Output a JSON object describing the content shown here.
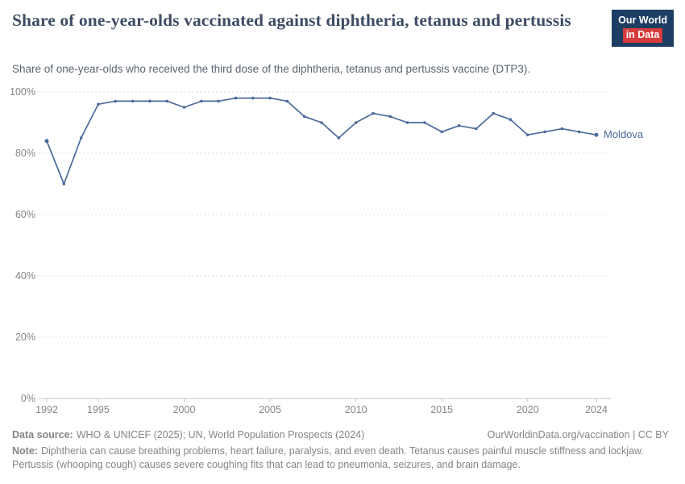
{
  "header": {
    "title": "Share of one-year-olds vaccinated against diphtheria, tetanus and pertussis",
    "subtitle": "Share of one-year-olds who received the third dose of the diphtheria, tetanus and pertussis vaccine (DTP3).",
    "logo": {
      "line1": "Our World",
      "line2": "in Data",
      "bg": "#1d3d63",
      "accent": "#d73c3c"
    }
  },
  "chart_data": {
    "type": "line",
    "title": "Share of one-year-olds vaccinated against diphtheria, tetanus and pertussis",
    "x": [
      1992,
      1993,
      1994,
      1995,
      1996,
      1997,
      1998,
      1999,
      2000,
      2001,
      2002,
      2003,
      2004,
      2005,
      2006,
      2007,
      2008,
      2009,
      2010,
      2011,
      2012,
      2013,
      2014,
      2015,
      2016,
      2017,
      2018,
      2019,
      2020,
      2021,
      2022,
      2023,
      2024
    ],
    "series": [
      {
        "name": "Moldova",
        "color": "#4c6a9c",
        "values": [
          84,
          70,
          85,
          96,
          97,
          97,
          97,
          97,
          95,
          97,
          97,
          98,
          98,
          98,
          97,
          92,
          90,
          85,
          90,
          93,
          92,
          90,
          90,
          87,
          89,
          88,
          93,
          91,
          86,
          87,
          88,
          87,
          86
        ]
      }
    ],
    "xlabel": "",
    "ylabel": "",
    "ylim": [
      0,
      100
    ],
    "yticks": [
      0,
      20,
      40,
      60,
      80,
      100
    ],
    "ytick_suffix": "%",
    "xticks": [
      1992,
      1995,
      2000,
      2005,
      2010,
      2015,
      2020,
      2024
    ],
    "grid": "dashed-horizontal",
    "grid_color": "#dcdcdc",
    "axis_color": "#858585",
    "legend_position": "end-of-line"
  },
  "footer": {
    "data_source_label": "Data source:",
    "data_source": "WHO & UNICEF (2025); UN, World Population Prospects (2024)",
    "rights": "OurWorldinData.org/vaccination | CC BY",
    "note_label": "Note:",
    "note": "Diphtheria can cause breathing problems, heart failure, paralysis, and even death. Tetanus causes painful muscle stiffness and lockjaw. Pertussis (whooping cough) causes severe coughing fits that can lead to pneumonia, seizures, and brain damage."
  }
}
